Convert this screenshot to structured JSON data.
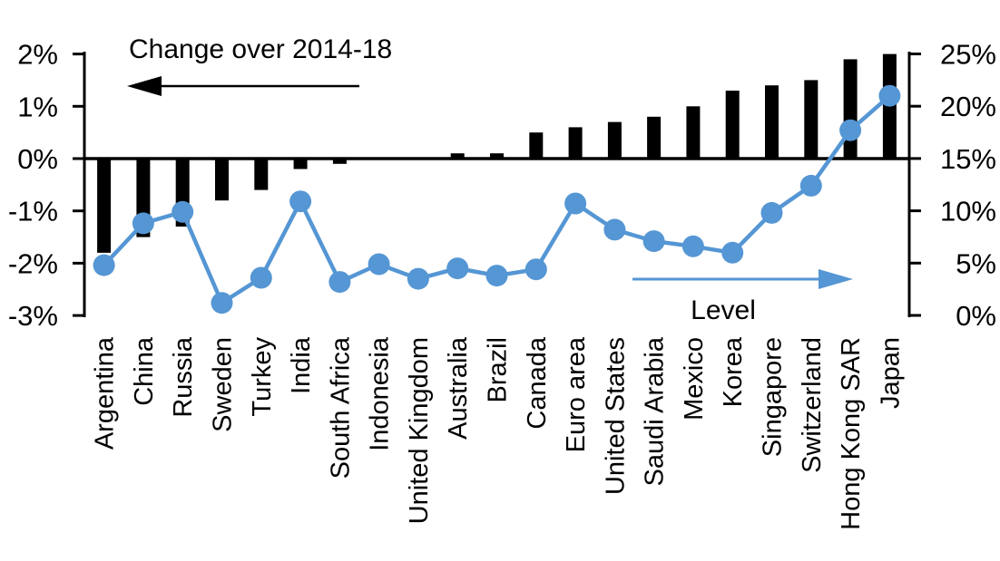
{
  "chart_data": {
    "type": "bar+line-dual-axis",
    "title": "",
    "categories": [
      "Argentina",
      "China",
      "Russia",
      "Sweden",
      "Turkey",
      "India",
      "South Africa",
      "Indonesia",
      "United Kingdom",
      "Australia",
      "Brazil",
      "Canada",
      "Euro area",
      "United States",
      "Saudi Arabia",
      "Mexico",
      "Korea",
      "Singapore",
      "Switzerland",
      "Hong Kong SAR",
      "Japan"
    ],
    "series": [
      {
        "name": "Change over 2014-18",
        "type": "bar",
        "axis": "left",
        "color": "#000000",
        "values": [
          -1.8,
          -1.5,
          -1.3,
          -0.8,
          -0.6,
          -0.2,
          -0.1,
          0.0,
          0.0,
          0.1,
          0.1,
          0.5,
          0.6,
          0.7,
          0.8,
          1.0,
          1.3,
          1.4,
          1.5,
          1.9,
          2.0
        ]
      },
      {
        "name": "Level",
        "type": "line",
        "axis": "right",
        "color": "#5596D4",
        "values": [
          4.8,
          8.8,
          9.9,
          1.2,
          3.6,
          10.9,
          3.2,
          4.9,
          3.5,
          4.5,
          3.8,
          4.4,
          10.7,
          8.2,
          7.1,
          6.6,
          6.0,
          9.8,
          12.4,
          17.7,
          21.0
        ]
      }
    ],
    "left_axis": {
      "unit": "%",
      "min": -3,
      "max": 2,
      "tick_labels": [
        "2%",
        "1%",
        "0%",
        "-1%",
        "-2%",
        "-3%"
      ],
      "tick_values": [
        2,
        1,
        0,
        -1,
        -2,
        -3
      ]
    },
    "right_axis": {
      "unit": "%",
      "min": 0,
      "max": 25,
      "tick_labels": [
        "25%",
        "20%",
        "15%",
        "10%",
        "5%",
        "0%"
      ],
      "tick_values": [
        25,
        20,
        15,
        10,
        5,
        0
      ]
    },
    "annotations": {
      "bar_series_label": "Change over 2014-18",
      "line_series_label": "Level"
    },
    "layout_hints": {
      "grid": "off",
      "zero_line": "bold horizontal line at left-axis 0% / right-axis 15%",
      "bar_arrow_direction": "left",
      "line_arrow_direction": "right"
    }
  }
}
